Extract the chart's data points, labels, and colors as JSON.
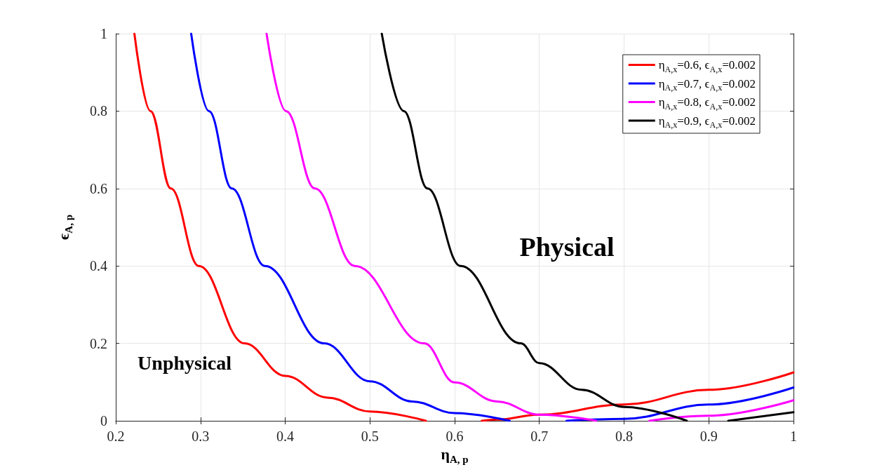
{
  "chart_data": {
    "type": "line",
    "xlabel": "η$_{A, p}$",
    "ylabel": "ϵ$_{A, p}$",
    "xlim": [
      0.2,
      1
    ],
    "xticks": [
      0.2,
      0.3,
      0.4,
      0.5,
      0.6,
      0.7,
      0.8,
      0.9,
      1
    ],
    "ylim": [
      0,
      1
    ],
    "yticks": [
      0,
      0.2,
      0.4,
      0.6,
      0.8,
      1
    ],
    "grid": true,
    "legend": "top right",
    "marker": "none",
    "line_style": "solid",
    "annotations": [
      "Unphysical",
      "Physical"
    ],
    "series": [
      {
        "name": "η$_{A,x}$=0.6, ϵ$_{A,x}$=0.002",
        "color": "#ff0000",
        "x": [
          0.222,
          0.241,
          0.265,
          0.298,
          0.352,
          0.4,
          0.45,
          0.5,
          0.566,
          0.6,
          0.632,
          0.65,
          0.7,
          0.8,
          0.9,
          1
        ],
        "values": [
          1,
          0.8,
          0.6,
          0.4,
          0.2,
          0.116,
          0.06,
          0.024,
          0,
          null,
          0,
          0.003,
          0.016,
          0.042,
          0.08,
          0.125
        ]
      },
      {
        "name": "η$_{A,x}$=0.7, ϵ$_{A,x}$=0.002",
        "color": "#0000ff",
        "x": [
          0.289,
          0.31,
          0.337,
          0.376,
          0.446,
          0.5,
          0.55,
          0.6,
          0.665,
          0.7,
          0.732,
          0.8,
          0.9,
          1
        ],
        "values": [
          1,
          0.8,
          0.6,
          0.4,
          0.2,
          0.102,
          0.05,
          0.02,
          0,
          null,
          0,
          0.005,
          0.042,
          0.086
        ]
      },
      {
        "name": "η$_{A,x}$=0.8, ϵ$_{A,x}$=0.002",
        "color": "#ff00ff",
        "x": [
          0.378,
          0.401,
          0.435,
          0.482,
          0.564,
          0.6,
          0.65,
          0.7,
          0.767,
          0.8,
          0.83,
          0.9,
          1
        ],
        "values": [
          1,
          0.8,
          0.6,
          0.4,
          0.2,
          0.099,
          0.05,
          0.016,
          0,
          null,
          0,
          0.013,
          0.053
        ]
      },
      {
        "name": "η$_{A,x}$=0.9, ϵ$_{A,x}$=0.002",
        "color": "#000000",
        "x": [
          0.514,
          0.54,
          0.568,
          0.607,
          0.678,
          0.7,
          0.75,
          0.8,
          0.874,
          0.9,
          0.923,
          1
        ],
        "values": [
          1,
          0.8,
          0.6,
          0.4,
          0.2,
          0.149,
          0.08,
          0.036,
          0,
          null,
          0,
          0.022
        ]
      }
    ]
  }
}
